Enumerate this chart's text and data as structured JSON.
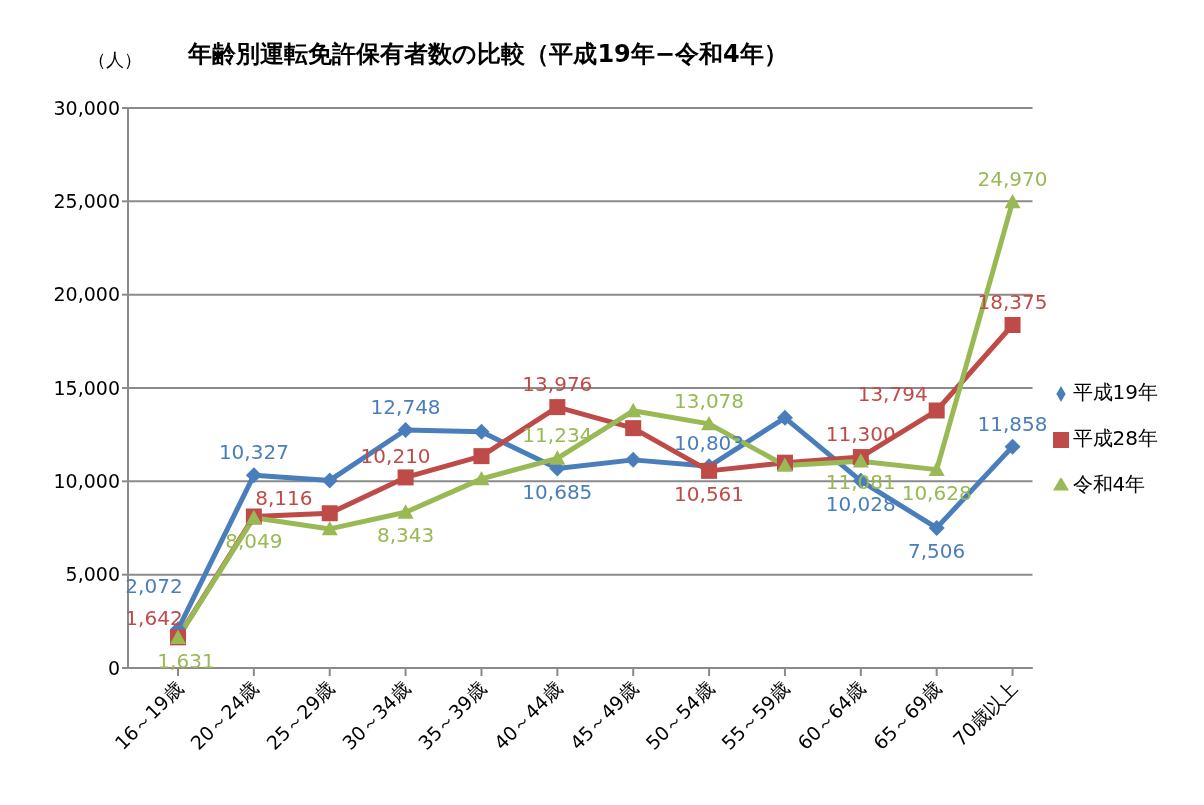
{
  "chart_data": {
    "type": "line",
    "title": "年齢別運転免許保有者数の比較（平成19年−令和4年）",
    "ylabel": "（人）",
    "categories": [
      "16～19歳",
      "20～24歳",
      "25～29歳",
      "30～34歳",
      "35～39歳",
      "40～44歳",
      "45～49歳",
      "50～54歳",
      "55～59歳",
      "60～64歳",
      "65～69歳",
      "70歳以上"
    ],
    "series": [
      {
        "name": "平成19年",
        "color": "#4a7ebb",
        "marker": "diamond",
        "values": [
          2072,
          10327,
          10050,
          12748,
          12650,
          10685,
          11150,
          10803,
          13400,
          10028,
          7506,
          11858
        ],
        "value_labels": [
          "2,072",
          "10,327",
          null,
          "12,748",
          null,
          "10,685",
          null,
          "10,803",
          null,
          "10,028",
          "7,506",
          "11,858"
        ]
      },
      {
        "name": "平成28年",
        "color": "#be4b48",
        "marker": "square",
        "values": [
          1642,
          8116,
          8290,
          10210,
          11350,
          13976,
          12850,
          10561,
          11000,
          11300,
          13794,
          18375
        ],
        "value_labels": [
          "1,642",
          "8,116",
          null,
          "10,210",
          null,
          "13,976",
          null,
          "10,561",
          null,
          "11,300",
          "13,794",
          "18,375"
        ]
      },
      {
        "name": "令和4年",
        "color": "#98b954",
        "marker": "triangle",
        "values": [
          1631,
          8049,
          7450,
          8343,
          10130,
          11234,
          13780,
          13078,
          10850,
          11081,
          10628,
          24970
        ],
        "value_labels": [
          "1,631",
          "8,049",
          null,
          "8,343",
          null,
          "11,234",
          null,
          "13,078",
          null,
          "11,081",
          "10,628",
          "24,970"
        ]
      }
    ],
    "ylim": [
      0,
      30000
    ],
    "yticks": [
      {
        "value": 0,
        "label": "0"
      },
      {
        "value": 5000,
        "label": "5,000"
      },
      {
        "value": 10000,
        "label": "10,000"
      },
      {
        "value": 15000,
        "label": "15,000"
      },
      {
        "value": 20000,
        "label": "20,000"
      },
      {
        "value": 25000,
        "label": "25,000"
      },
      {
        "value": 30000,
        "label": "30,000"
      }
    ],
    "grid": "y",
    "legend": "right",
    "line_style": "solid"
  }
}
